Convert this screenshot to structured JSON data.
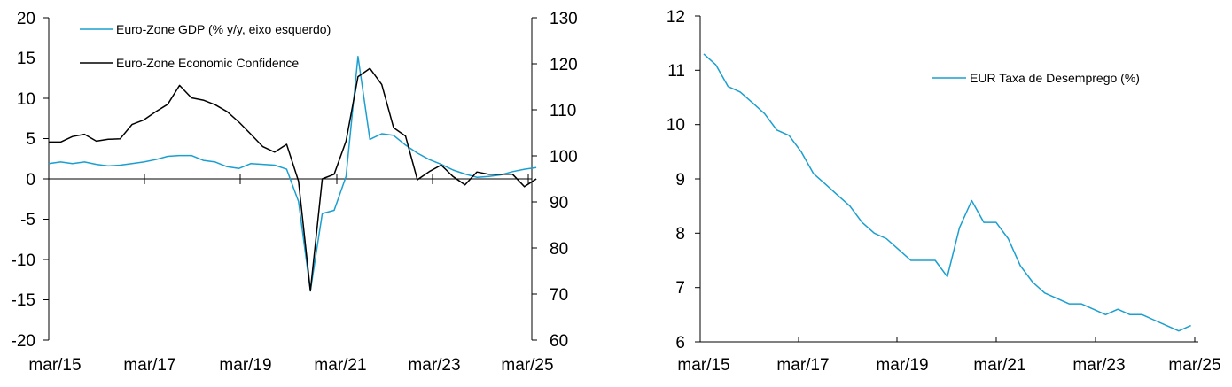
{
  "chart_data": [
    {
      "type": "line",
      "x_tick_labels": [
        "mar/15",
        "mar/17",
        "mar/19",
        "mar/21",
        "mar/23",
        "mar/25"
      ],
      "y_left_ticks": [
        "20",
        "15",
        "10",
        "5",
        "0",
        "-5",
        "-10",
        "-15",
        "-20"
      ],
      "y_right_ticks": [
        "130",
        "120",
        "110",
        "100",
        "90",
        "80",
        "70",
        "60"
      ],
      "ylim_left": [
        -20,
        20
      ],
      "ylim_right": [
        60,
        130
      ],
      "xlim": [
        2015.17,
        2025.25
      ],
      "legend_position": "top-left",
      "grid": false,
      "series": [
        {
          "name": "Euro-Zone GDP (% y/y, eixo esquerdo)",
          "axis": "left",
          "color": "#1a9fd0",
          "points": [
            [
              2015.17,
              1.9
            ],
            [
              2015.42,
              2.1
            ],
            [
              2015.67,
              1.9
            ],
            [
              2015.92,
              2.1
            ],
            [
              2016.17,
              1.8
            ],
            [
              2016.42,
              1.6
            ],
            [
              2016.67,
              1.7
            ],
            [
              2016.92,
              1.9
            ],
            [
              2017.17,
              2.1
            ],
            [
              2017.42,
              2.4
            ],
            [
              2017.67,
              2.8
            ],
            [
              2017.92,
              2.9
            ],
            [
              2018.17,
              2.9
            ],
            [
              2018.42,
              2.3
            ],
            [
              2018.67,
              2.1
            ],
            [
              2018.92,
              1.5
            ],
            [
              2019.17,
              1.3
            ],
            [
              2019.42,
              1.9
            ],
            [
              2019.67,
              1.8
            ],
            [
              2019.92,
              1.7
            ],
            [
              2020.17,
              1.2
            ],
            [
              2020.42,
              -2.8
            ],
            [
              2020.67,
              -13.9
            ],
            [
              2020.92,
              -4.3
            ],
            [
              2021.17,
              -3.9
            ],
            [
              2021.42,
              0.3
            ],
            [
              2021.67,
              15.2
            ],
            [
              2021.92,
              4.9
            ],
            [
              2022.17,
              5.6
            ],
            [
              2022.42,
              5.4
            ],
            [
              2022.67,
              4.2
            ],
            [
              2022.92,
              3.2
            ],
            [
              2023.17,
              2.4
            ],
            [
              2023.42,
              1.8
            ],
            [
              2023.67,
              1.1
            ],
            [
              2023.92,
              0.6
            ],
            [
              2024.17,
              0.2
            ],
            [
              2024.42,
              0.3
            ],
            [
              2024.67,
              0.5
            ],
            [
              2024.92,
              0.9
            ],
            [
              2025.17,
              1.2
            ],
            [
              2025.42,
              1.4
            ]
          ]
        },
        {
          "name": "Euro-Zone Economic Confidence",
          "axis": "right",
          "color": "#000000",
          "points": [
            [
              2015.17,
              103.0
            ],
            [
              2015.42,
              103.0
            ],
            [
              2015.67,
              104.2
            ],
            [
              2015.92,
              104.7
            ],
            [
              2016.17,
              103.2
            ],
            [
              2016.42,
              103.6
            ],
            [
              2016.67,
              103.7
            ],
            [
              2016.92,
              106.8
            ],
            [
              2017.17,
              107.8
            ],
            [
              2017.42,
              109.6
            ],
            [
              2017.67,
              111.2
            ],
            [
              2017.92,
              115.3
            ],
            [
              2018.17,
              112.6
            ],
            [
              2018.42,
              112.1
            ],
            [
              2018.67,
              111.1
            ],
            [
              2018.92,
              109.6
            ],
            [
              2019.17,
              107.3
            ],
            [
              2019.42,
              104.7
            ],
            [
              2019.67,
              102.0
            ],
            [
              2019.92,
              100.8
            ],
            [
              2020.17,
              102.5
            ],
            [
              2020.42,
              94.5
            ],
            [
              2020.67,
              70.7
            ],
            [
              2020.92,
              95.0
            ],
            [
              2021.17,
              96.0
            ],
            [
              2021.42,
              103.2
            ],
            [
              2021.67,
              117.2
            ],
            [
              2021.92,
              119.0
            ],
            [
              2022.17,
              115.5
            ],
            [
              2022.42,
              106.1
            ],
            [
              2022.67,
              104.3
            ],
            [
              2022.92,
              94.8
            ],
            [
              2023.17,
              96.6
            ],
            [
              2023.42,
              98.0
            ],
            [
              2023.67,
              95.5
            ],
            [
              2023.92,
              93.7
            ],
            [
              2024.17,
              96.5
            ],
            [
              2024.42,
              96.0
            ],
            [
              2024.67,
              96.0
            ],
            [
              2024.92,
              96.0
            ],
            [
              2025.17,
              93.3
            ],
            [
              2025.42,
              95.0
            ]
          ]
        }
      ]
    },
    {
      "type": "line",
      "x_tick_labels": [
        "mar/15",
        "mar/17",
        "mar/19",
        "mar/21",
        "mar/23",
        "mar/25"
      ],
      "y_ticks": [
        "12",
        "11",
        "10",
        "9",
        "8",
        "7",
        "6"
      ],
      "ylim": [
        6,
        12
      ],
      "xlim": [
        2015.17,
        2025.25
      ],
      "legend_position": "top-right",
      "grid": false,
      "series": [
        {
          "name": "EUR Taxa de Desemprego (%)",
          "color": "#1a9fd0",
          "points": [
            [
              2015.17,
              11.3
            ],
            [
              2015.42,
              11.1
            ],
            [
              2015.67,
              10.7
            ],
            [
              2015.92,
              10.6
            ],
            [
              2016.17,
              10.4
            ],
            [
              2016.42,
              10.2
            ],
            [
              2016.67,
              9.9
            ],
            [
              2016.92,
              9.8
            ],
            [
              2017.17,
              9.5
            ],
            [
              2017.42,
              9.1
            ],
            [
              2017.67,
              8.9
            ],
            [
              2017.92,
              8.7
            ],
            [
              2018.17,
              8.5
            ],
            [
              2018.42,
              8.2
            ],
            [
              2018.67,
              8.0
            ],
            [
              2018.92,
              7.9
            ],
            [
              2019.17,
              7.7
            ],
            [
              2019.42,
              7.5
            ],
            [
              2019.67,
              7.5
            ],
            [
              2019.92,
              7.5
            ],
            [
              2020.17,
              7.2
            ],
            [
              2020.42,
              8.1
            ],
            [
              2020.67,
              8.6
            ],
            [
              2020.92,
              8.2
            ],
            [
              2021.17,
              8.2
            ],
            [
              2021.42,
              7.9
            ],
            [
              2021.67,
              7.4
            ],
            [
              2021.92,
              7.1
            ],
            [
              2022.17,
              6.9
            ],
            [
              2022.42,
              6.8
            ],
            [
              2022.67,
              6.7
            ],
            [
              2022.92,
              6.7
            ],
            [
              2023.17,
              6.6
            ],
            [
              2023.42,
              6.5
            ],
            [
              2023.67,
              6.6
            ],
            [
              2023.92,
              6.5
            ],
            [
              2024.17,
              6.5
            ],
            [
              2024.42,
              6.4
            ],
            [
              2024.67,
              6.3
            ],
            [
              2024.92,
              6.2
            ],
            [
              2025.17,
              6.3
            ]
          ]
        }
      ]
    }
  ]
}
